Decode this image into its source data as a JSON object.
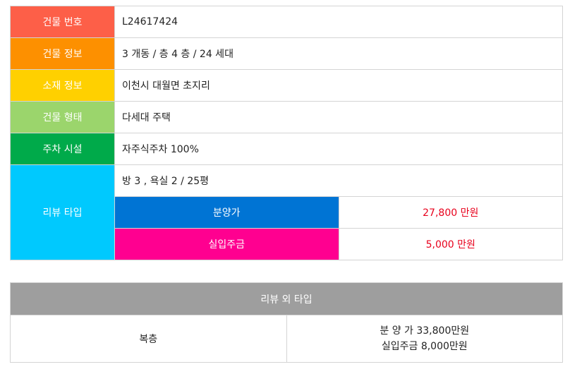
{
  "colors": {
    "building_no": "#fd5f48",
    "building_info": "#fd9000",
    "location": "#ffd000",
    "building_type": "#9bd56c",
    "parking": "#00aa4a",
    "review_type": "#00c9fe",
    "sale_price": "#0074d4",
    "actual_payment": "#ff0090",
    "price_text": "#e8001c",
    "other_header": "#9e9e9e"
  },
  "building": {
    "number_label": "건물 번호",
    "number_value": "L24617424",
    "info_label": "건물 정보",
    "info_value": "3 개동 / 층 4 층 / 24 세대",
    "location_label": "소재 정보",
    "location_value": "이천시 대월면 초지리",
    "type_label": "건물 형태",
    "type_value": "다세대 주택",
    "parking_label": "주차 시설",
    "parking_value": "자주식주차 100%"
  },
  "review": {
    "label": "리뷰 타입",
    "rooms": "방 3 , 욕실 2 / 25평",
    "sale_price_label": "분양가",
    "sale_price_value": "27,800 만원",
    "actual_payment_label": "실입주금",
    "actual_payment_value": "5,000 만원"
  },
  "other_types": {
    "title": "리뷰 외 타입",
    "items": [
      {
        "type": "복층",
        "sale_price": "분 양 가 33,800만원",
        "actual_payment": "실입주금 8,000만원"
      }
    ]
  }
}
